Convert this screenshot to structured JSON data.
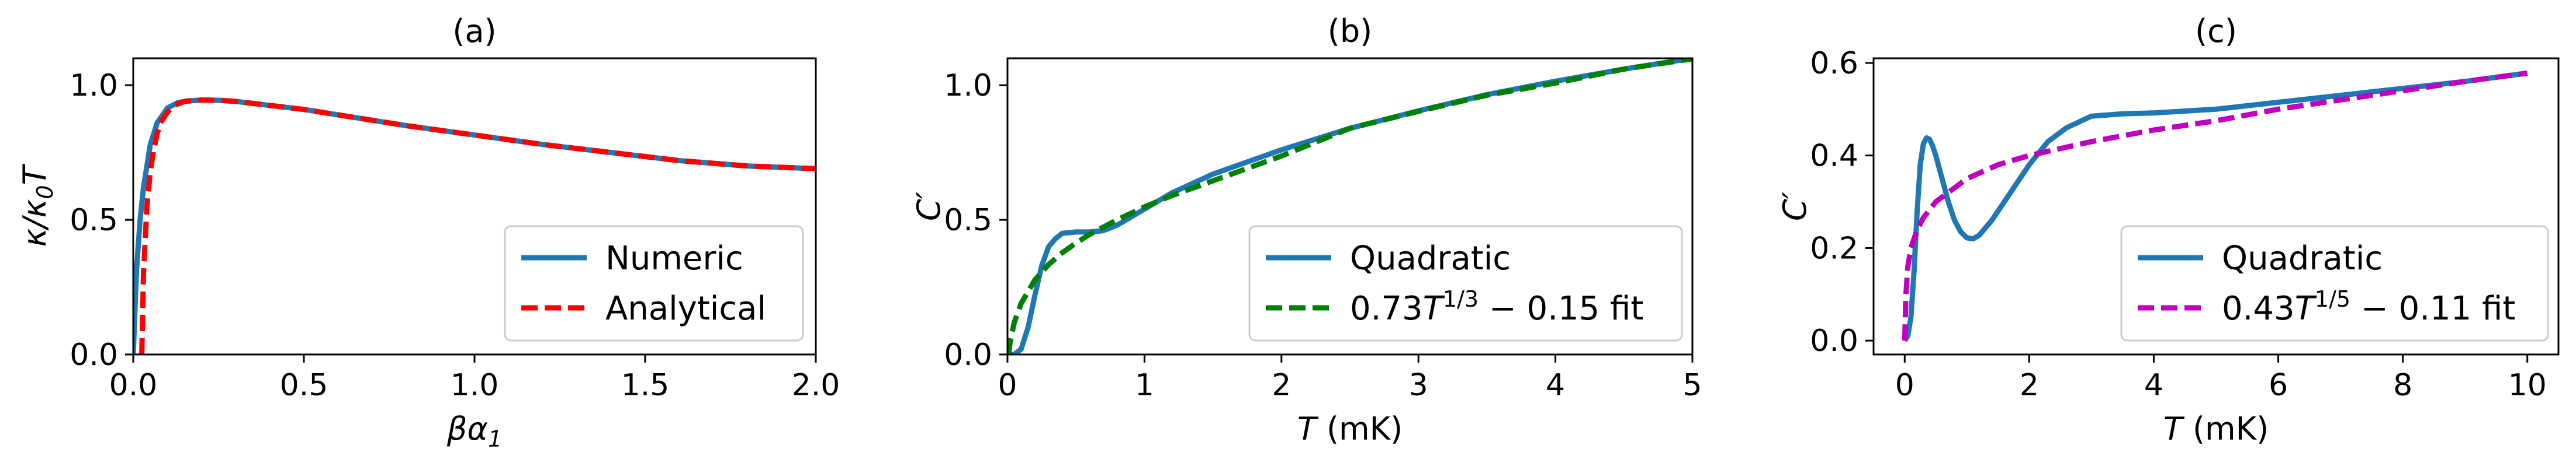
{
  "chart_data": [
    {
      "type": "line",
      "title": "(a)",
      "xlabel": "βα",
      "xlabel_sub": "1",
      "ylabel": "κ/κ",
      "ylabel_sub": "0",
      "ylabel_tail": "T",
      "xlim": [
        0,
        2.0
      ],
      "ylim": [
        0,
        1.1
      ],
      "xticks": [
        0.0,
        0.5,
        1.0,
        1.5,
        2.0
      ],
      "xtick_labels": [
        "0.0",
        "0.5",
        "1.0",
        "1.5",
        "2.0"
      ],
      "yticks": [
        0.0,
        0.5,
        1.0
      ],
      "ytick_labels": [
        "0.0",
        "0.5",
        "1.0"
      ],
      "legend_position": "lower-right",
      "series": [
        {
          "name": "Numeric",
          "color": "#1f77b4",
          "style": "solid",
          "x": [
            0.0,
            0.003,
            0.006,
            0.01,
            0.02,
            0.03,
            0.05,
            0.07,
            0.1,
            0.13,
            0.16,
            0.2,
            0.25,
            0.3,
            0.4,
            0.5,
            0.6,
            0.8,
            1.0,
            1.2,
            1.4,
            1.6,
            1.8,
            2.0
          ],
          "y": [
            0.0,
            0.1,
            0.2,
            0.32,
            0.5,
            0.62,
            0.78,
            0.86,
            0.915,
            0.935,
            0.942,
            0.945,
            0.944,
            0.94,
            0.925,
            0.91,
            0.89,
            0.85,
            0.815,
            0.78,
            0.75,
            0.72,
            0.7,
            0.69
          ]
        },
        {
          "name": "Analytical",
          "color": "#ff0000",
          "style": "dashed",
          "x": [
            0.025,
            0.03,
            0.04,
            0.05,
            0.06,
            0.07,
            0.08,
            0.1,
            0.12,
            0.15,
            0.2,
            0.25,
            0.3,
            0.4,
            0.5,
            0.6,
            0.8,
            1.0,
            1.2,
            1.4,
            1.6,
            1.8,
            2.0
          ],
          "y": [
            0.0,
            0.3,
            0.55,
            0.68,
            0.76,
            0.82,
            0.86,
            0.9,
            0.925,
            0.94,
            0.945,
            0.944,
            0.94,
            0.925,
            0.91,
            0.89,
            0.85,
            0.815,
            0.78,
            0.75,
            0.72,
            0.7,
            0.69
          ]
        }
      ]
    },
    {
      "type": "line",
      "title": "(b)",
      "xlabel": "T",
      "xlabel_unit": " (mK)",
      "ylabel": "C",
      "ylabel_prime": "′",
      "xlim": [
        0,
        5
      ],
      "ylim": [
        0,
        1.1
      ],
      "xticks": [
        0,
        1,
        2,
        3,
        4,
        5
      ],
      "xtick_labels": [
        "0",
        "1",
        "2",
        "3",
        "4",
        "5"
      ],
      "yticks": [
        0.0,
        0.5,
        1.0
      ],
      "ytick_labels": [
        "0.0",
        "0.5",
        "1.0"
      ],
      "legend_position": "lower-right",
      "series": [
        {
          "name": "Quadratic",
          "color": "#1f77b4",
          "style": "solid",
          "x": [
            0.0,
            0.05,
            0.1,
            0.15,
            0.2,
            0.25,
            0.3,
            0.35,
            0.4,
            0.5,
            0.6,
            0.7,
            0.8,
            0.9,
            1.0,
            1.2,
            1.5,
            2.0,
            2.5,
            3.0,
            3.5,
            4.0,
            4.5,
            5.0
          ],
          "y": [
            0.0,
            0.0,
            0.02,
            0.1,
            0.22,
            0.33,
            0.4,
            0.43,
            0.45,
            0.455,
            0.455,
            0.46,
            0.48,
            0.51,
            0.54,
            0.6,
            0.67,
            0.76,
            0.84,
            0.905,
            0.965,
            1.015,
            1.06,
            1.1
          ]
        },
        {
          "name": "0.73T^{1/3} − 0.15 fit",
          "label_prefix": "0.73",
          "label_var": "T",
          "label_sup": "1/3",
          "label_suffix": " − 0.15 fit",
          "color": "#008000",
          "style": "dashed",
          "x": [
            0.0089,
            0.02,
            0.05,
            0.1,
            0.2,
            0.3,
            0.4,
            0.5,
            0.6,
            0.8,
            1.0,
            1.2,
            1.5,
            2.0,
            2.5,
            3.0,
            3.5,
            4.0,
            4.5,
            5.0
          ],
          "y": [
            0.0,
            0.05,
            0.12,
            0.19,
            0.277,
            0.334,
            0.378,
            0.414,
            0.446,
            0.5,
            0.548,
            0.59,
            0.645,
            0.737,
            0.84,
            0.903,
            0.963,
            1.008,
            1.06,
            1.098
          ]
        }
      ]
    },
    {
      "type": "line",
      "title": "(c)",
      "xlabel": "T",
      "xlabel_unit": " (mK)",
      "ylabel": "C",
      "ylabel_prime": "′",
      "xlim": [
        -0.5,
        10.5
      ],
      "ylim": [
        -0.03,
        0.61
      ],
      "xticks": [
        0,
        2,
        4,
        6,
        8,
        10
      ],
      "xtick_labels": [
        "0",
        "2",
        "4",
        "6",
        "8",
        "10"
      ],
      "yticks": [
        0.0,
        0.2,
        0.4,
        0.6
      ],
      "ytick_labels": [
        "0.0",
        "0.2",
        "0.4",
        "0.6"
      ],
      "legend_position": "lower-right",
      "series": [
        {
          "name": "Quadratic",
          "color": "#1f77b4",
          "style": "solid",
          "x": [
            0.0,
            0.05,
            0.1,
            0.15,
            0.2,
            0.25,
            0.3,
            0.35,
            0.4,
            0.45,
            0.5,
            0.6,
            0.7,
            0.8,
            0.9,
            1.0,
            1.1,
            1.2,
            1.4,
            1.6,
            1.8,
            2.0,
            2.3,
            2.6,
            3.0,
            3.5,
            4.0,
            5.0,
            6.0,
            7.0,
            8.0,
            9.0,
            10.0
          ],
          "y": [
            0.0,
            0.01,
            0.05,
            0.15,
            0.28,
            0.38,
            0.425,
            0.438,
            0.435,
            0.42,
            0.4,
            0.35,
            0.3,
            0.26,
            0.235,
            0.222,
            0.22,
            0.228,
            0.26,
            0.3,
            0.34,
            0.38,
            0.43,
            0.46,
            0.485,
            0.49,
            0.492,
            0.5,
            0.515,
            0.53,
            0.545,
            0.56,
            0.578
          ]
        },
        {
          "name": "0.43T^{1/5} − 0.11 fit",
          "label_prefix": "0.43",
          "label_var": "T",
          "label_sup": "1/5",
          "label_suffix": " − 0.11 fit",
          "color": "#bf00bf",
          "style": "dashed",
          "x": [
            0.0,
            0.02,
            0.05,
            0.1,
            0.2,
            0.3,
            0.5,
            0.8,
            1.0,
            1.5,
            2.0,
            3.0,
            4.0,
            5.0,
            6.0,
            7.0,
            8.0,
            9.0,
            10.0
          ],
          "y": [
            0.0,
            0.1,
            0.16,
            0.2,
            0.24,
            0.265,
            0.3,
            0.33,
            0.35,
            0.38,
            0.4,
            0.43,
            0.455,
            0.475,
            0.5,
            0.52,
            0.54,
            0.56,
            0.578
          ]
        }
      ]
    }
  ]
}
